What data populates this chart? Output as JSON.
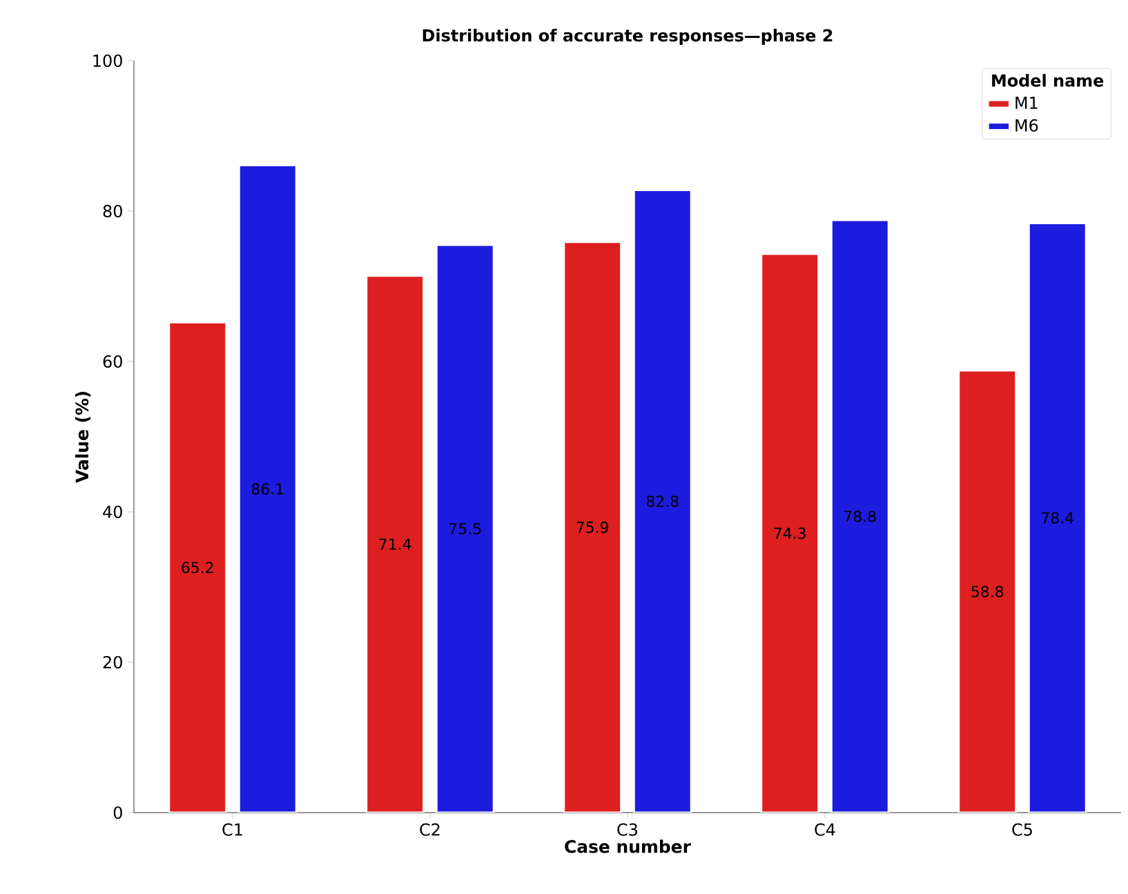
{
  "chart_data": {
    "type": "bar",
    "title": "Distribution of accurate responses—phase 2",
    "xlabel": "Case number",
    "ylabel": "Value (%)",
    "legend_title": "Model name",
    "categories": [
      "C1",
      "C2",
      "C3",
      "C4",
      "C5"
    ],
    "series": [
      {
        "name": "M1",
        "color": "#dd1f1f",
        "values": [
          65.2,
          71.4,
          75.9,
          74.3,
          58.8
        ]
      },
      {
        "name": "M6",
        "color": "#1c1cdf",
        "values": [
          86.1,
          75.5,
          82.8,
          78.8,
          78.4
        ]
      }
    ],
    "ylim": [
      0,
      100
    ],
    "yticks": [
      0,
      20,
      40,
      60,
      80,
      100
    ],
    "data_labels": true,
    "legend": "top right"
  }
}
